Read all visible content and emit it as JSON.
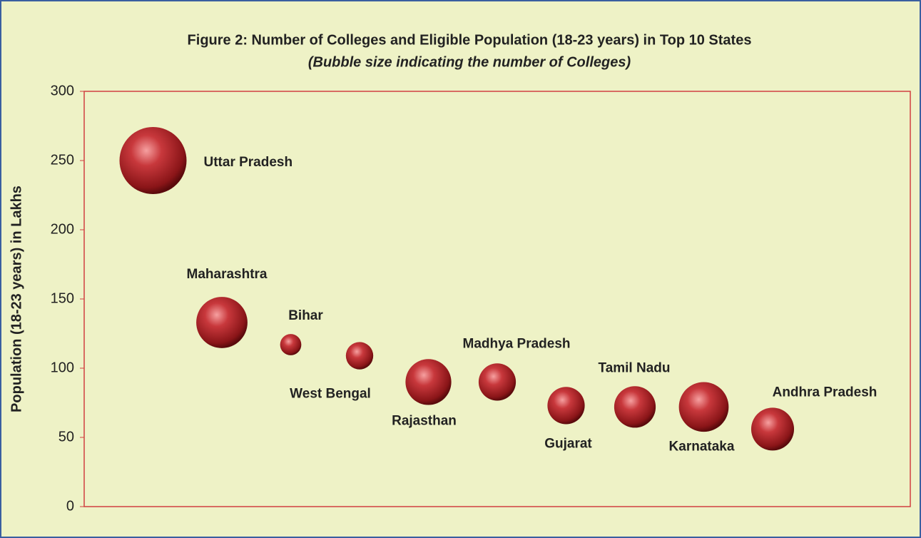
{
  "chart_data": {
    "type": "bubble",
    "title": "Figure 2: Number of Colleges and Eligible Population (18-23 years) in Top 10 States",
    "subtitle": "(Bubble size indicating the number of Colleges)",
    "y_label": "Population (18-23 years) in Lakhs",
    "categories": [
      "Uttar Pradesh",
      "Maharashtra",
      "Bihar",
      "West Bengal",
      "Rajasthan",
      "Madhya Pradesh",
      "Gujarat",
      "Tamil Nadu",
      "Karnataka",
      "Andhra Pradesh"
    ],
    "values": [
      250,
      133,
      117,
      109,
      90,
      90,
      73,
      72,
      72,
      56
    ],
    "sizes": [
      6000,
      3500,
      600,
      1000,
      2800,
      1850,
      1850,
      2300,
      3300,
      2450
    ],
    "color": "#c0282c",
    "ylim": [
      0,
      300
    ],
    "yticks": [
      0,
      50,
      100,
      150,
      200,
      250,
      300
    ]
  }
}
